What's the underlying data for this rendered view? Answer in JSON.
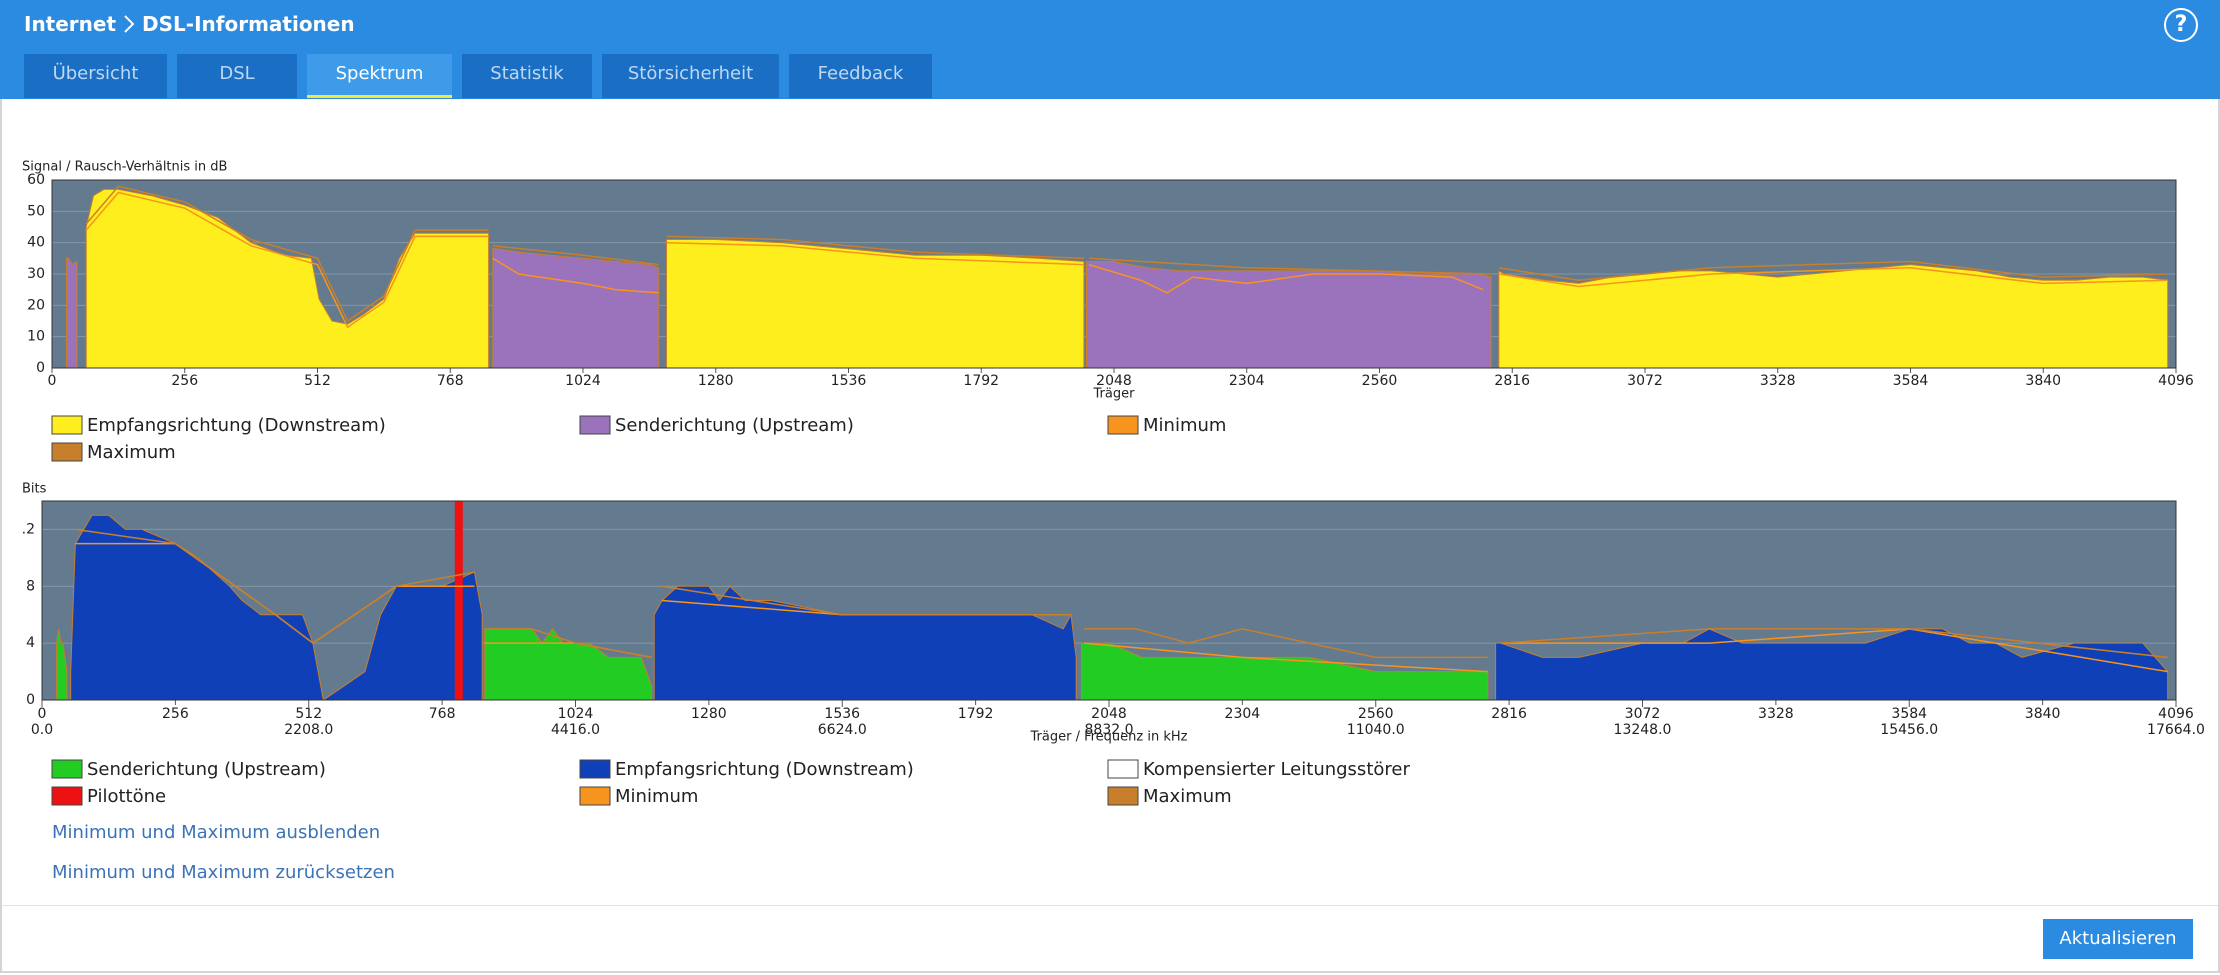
{
  "header": {
    "breadcrumb": [
      "Internet",
      "DSL-Informationen"
    ],
    "help": "?"
  },
  "tabs": [
    {
      "label": "Übersicht",
      "active": false
    },
    {
      "label": "DSL",
      "active": false
    },
    {
      "label": "Spektrum",
      "active": true
    },
    {
      "label": "Statistik",
      "active": false
    },
    {
      "label": "Störsicherheit",
      "active": false
    },
    {
      "label": "Feedback",
      "active": false
    }
  ],
  "chart_data": [
    {
      "type": "area",
      "y_label": "Signal / Rausch-Verhältnis in dB",
      "x_label": "Träger",
      "xlim": [
        0,
        4096
      ],
      "xticks": [
        0,
        256,
        512,
        768,
        1024,
        1280,
        1536,
        1792,
        2048,
        2304,
        2560,
        2816,
        3072,
        3328,
        3584,
        3840,
        4096
      ],
      "ylim": [
        0,
        60
      ],
      "yticks": [
        0,
        10,
        20,
        30,
        40,
        50,
        60
      ],
      "grid": true,
      "series": [
        {
          "name": "Empfangsrichtung (Downstream)",
          "type": "area",
          "color": "#ffee1e",
          "x": [
            66,
            80,
            100,
            128,
            192,
            256,
            320,
            384,
            448,
            500,
            515,
            540,
            570,
            600,
            640,
            670,
            700,
            768,
            842,
            843,
            1185,
            1200,
            1280,
            1408,
            1536,
            1664,
            1792,
            1900,
            1990,
            1995,
            2790,
            2800,
            2880,
            2944,
            3008,
            3072,
            3136,
            3200,
            3264,
            3328,
            3392,
            3456,
            3520,
            3584,
            3648,
            3712,
            3776,
            3840,
            3904,
            3968,
            4032,
            4080
          ],
          "values": [
            45,
            55,
            57,
            57,
            55,
            52,
            48,
            40,
            36,
            35,
            22,
            15,
            14,
            17,
            22,
            35,
            43,
            43,
            43,
            null,
            41,
            41,
            41,
            40,
            38,
            36,
            36,
            35,
            34,
            null,
            31,
            30,
            28,
            27,
            29,
            30,
            31,
            31,
            30,
            29,
            30,
            31,
            32,
            33,
            32,
            31,
            29,
            28,
            28,
            29,
            29,
            28
          ]
        },
        {
          "name": "Senderichtung (Upstream)",
          "type": "area",
          "color": "#9b72bc",
          "x": [
            28,
            32,
            40,
            48,
            49,
            850,
            860,
            900,
            960,
            1024,
            1088,
            1152,
            1170,
            1171,
            1995,
            2000,
            2048,
            2112,
            2176,
            2240,
            2304,
            2368,
            2432,
            2496,
            2560,
            2624,
            2688,
            2752,
            2775
          ],
          "values": [
            35,
            35,
            33,
            34,
            null,
            38,
            38,
            37,
            36,
            35,
            34,
            33,
            32,
            null,
            34,
            34,
            34,
            32,
            31,
            31,
            31,
            31,
            31,
            31,
            31,
            30,
            30,
            30,
            29
          ]
        },
        {
          "name": "Minimum",
          "type": "line",
          "color": "#f7941d",
          "x": [
            66,
            128,
            256,
            384,
            512,
            570,
            640,
            700,
            842,
            843,
            850,
            900,
            1024,
            1088,
            1170,
            1171,
            1185,
            1408,
            1664,
            1990,
            1991,
            2000,
            2100,
            2150,
            2200,
            2304,
            2432,
            2560,
            2700,
            2760,
            2761,
            2790,
            2944,
            3200,
            3584,
            3840,
            4080
          ],
          "values": [
            44,
            56,
            51,
            39,
            33,
            13,
            21,
            42,
            42,
            null,
            35,
            30,
            27,
            25,
            24,
            null,
            40,
            39,
            35,
            33,
            null,
            33,
            28,
            24,
            29,
            27,
            30,
            30,
            29,
            25,
            null,
            30,
            26,
            30,
            32,
            27,
            28
          ]
        },
        {
          "name": "Maximum",
          "type": "line",
          "color": "#c87f2c",
          "x": [
            66,
            128,
            256,
            384,
            512,
            570,
            640,
            700,
            842,
            843,
            850,
            1024,
            1170,
            1171,
            1185,
            1408,
            1664,
            1990,
            1991,
            2000,
            2304,
            2775,
            2776,
            2790,
            2944,
            3200,
            3584,
            3840,
            4080
          ],
          "values": [
            46,
            58,
            53,
            41,
            35,
            15,
            23,
            44,
            44,
            null,
            39,
            36,
            33,
            null,
            42,
            41,
            37,
            35,
            null,
            35,
            32,
            30,
            null,
            32,
            28,
            32,
            34,
            29,
            30
          ]
        }
      ]
    },
    {
      "type": "area",
      "y_label": "Bits",
      "x_label": "Träger / Frequenz in kHz",
      "xlim": [
        0,
        4096
      ],
      "xticks": [
        0,
        256,
        512,
        768,
        1024,
        1280,
        1536,
        1792,
        2048,
        2304,
        2560,
        2816,
        3072,
        3328,
        3584,
        3840,
        4096
      ],
      "x2lim": [
        0,
        17664
      ],
      "x2ticks": [
        {
          "value": 0,
          "label": "0.0"
        },
        {
          "value": 2208,
          "label": "2208.0"
        },
        {
          "value": 4416,
          "label": "4416.0"
        },
        {
          "value": 6624,
          "label": "6624.0"
        },
        {
          "value": 8832,
          "label": "8832.0"
        },
        {
          "value": 11040,
          "label": "11040.0"
        },
        {
          "value": 13248,
          "label": "13248.0"
        },
        {
          "value": 15456,
          "label": "15456.0"
        },
        {
          "value": 17664,
          "label": "17664.0"
        }
      ],
      "ylim": [
        0,
        14
      ],
      "yticks": [
        0,
        4,
        8,
        {
          "value": 12,
          "label": ".2"
        }
      ],
      "grid": true,
      "series": [
        {
          "name": "Senderichtung (Upstream)",
          "type": "area",
          "color": "#22cc22",
          "x": [
            28,
            32,
            36,
            40,
            44,
            48,
            49,
            850,
            860,
            900,
            940,
            960,
            980,
            1000,
            1024,
            1050,
            1088,
            1150,
            1170,
            1171,
            1995,
            2000,
            2048,
            2112,
            2200,
            2300,
            2432,
            2560,
            2650,
            2700,
            2775
          ],
          "values": [
            4,
            5,
            4,
            4,
            3,
            2,
            null,
            5,
            5,
            5,
            5,
            4,
            5,
            4,
            4,
            4,
            3,
            3,
            1,
            null,
            4,
            4,
            4,
            3,
            3,
            3,
            3,
            2,
            2,
            2,
            2
          ]
        },
        {
          "name": "Empfangsrichtung (Downstream)",
          "type": "area",
          "color": "#1040b8",
          "x": [
            55,
            64,
            80,
            96,
            128,
            160,
            192,
            256,
            300,
            330,
            360,
            384,
            420,
            448,
            500,
            520,
            540,
            580,
            620,
            650,
            680,
            720,
            768,
            830,
            845,
            846,
            1175,
            1190,
            1220,
            1280,
            1300,
            1320,
            1350,
            1400,
            1536,
            1664,
            1792,
            1900,
            1960,
            1975,
            1985,
            1990,
            2790,
            2800,
            2880,
            2950,
            3072,
            3150,
            3200,
            3264,
            3328,
            3400,
            3500,
            3584,
            3648,
            3700,
            3750,
            3800,
            3900,
            3968,
            4032,
            4080
          ],
          "values": [
            2,
            11,
            12,
            13,
            13,
            12,
            12,
            11,
            10,
            9,
            8,
            7,
            6,
            6,
            6,
            4,
            0,
            1,
            2,
            6,
            8,
            8,
            8,
            9,
            6,
            null,
            6,
            7,
            8,
            8,
            7,
            8,
            7,
            7,
            6,
            6,
            6,
            6,
            5,
            6,
            3,
            null,
            4,
            4,
            3,
            3,
            4,
            4,
            5,
            4,
            4,
            4,
            4,
            5,
            5,
            4,
            4,
            3,
            4,
            4,
            4,
            2
          ]
        },
        {
          "name": "Kompensierter Leitungsstörer",
          "type": "area",
          "color": "#ffffff"
        },
        {
          "name": "Pilottöne",
          "type": "bar",
          "color": "#ee1111",
          "x": [
            800
          ],
          "values": [
            14
          ]
        },
        {
          "name": "Minimum",
          "type": "line",
          "color": "#f7941d",
          "x": [
            64,
            256,
            448,
            520,
            680,
            830,
            846,
            850,
            1024,
            1170,
            1171,
            1190,
            1536,
            1960,
            1990,
            2000,
            2304,
            2775,
            2776,
            2800,
            3200,
            3584,
            4080
          ],
          "values": [
            11,
            11,
            6,
            4,
            8,
            8,
            null,
            4,
            4,
            3,
            null,
            7,
            6,
            6,
            null,
            4,
            3,
            2,
            null,
            4,
            4,
            5,
            2
          ]
        },
        {
          "name": "Maximum",
          "type": "line",
          "color": "#c87f2c",
          "x": [
            64,
            256,
            448,
            520,
            680,
            830,
            846,
            850,
            940,
            1024,
            1170,
            1171,
            1190,
            1536,
            1975,
            1990,
            2000,
            2100,
            2200,
            2304,
            2432,
            2560,
            2700,
            2775,
            2776,
            2800,
            3200,
            3584,
            4080
          ],
          "values": [
            12,
            11,
            6,
            4,
            8,
            9,
            null,
            5,
            5,
            4,
            3,
            null,
            8,
            6,
            6,
            null,
            5,
            5,
            4,
            5,
            4,
            3,
            3,
            3,
            null,
            4,
            5,
            5,
            3
          ]
        }
      ]
    }
  ],
  "links": [
    "Minimum und Maximum ausblenden",
    "Minimum und Maximum zurücksetzen"
  ],
  "button": "Aktualisieren"
}
